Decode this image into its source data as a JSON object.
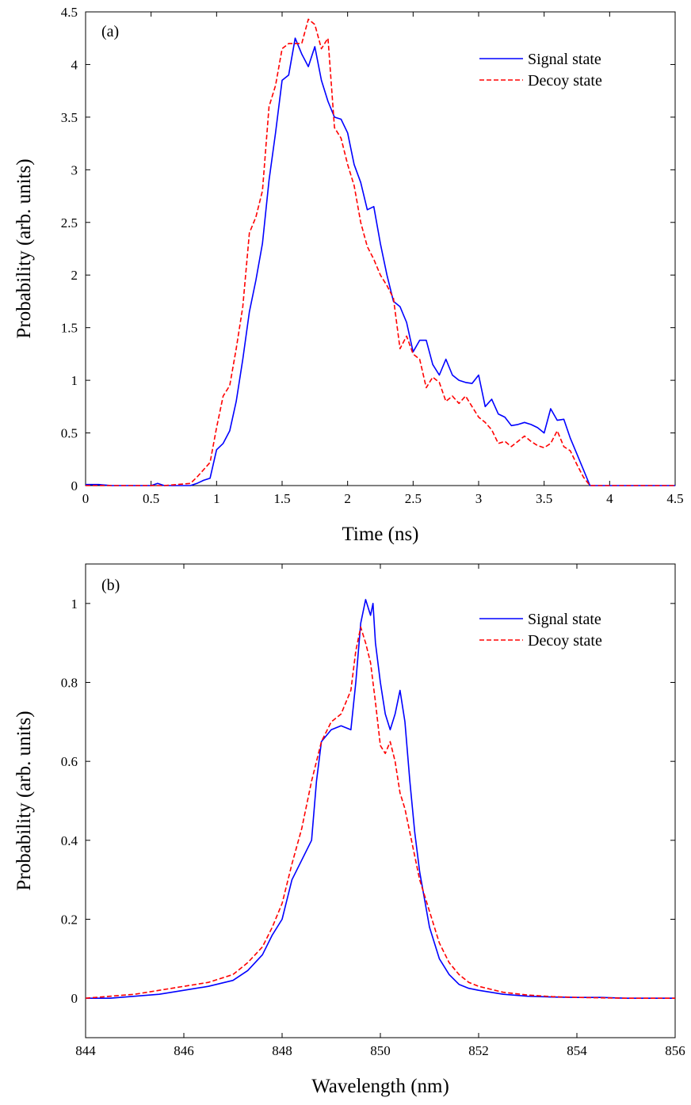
{
  "chart_data": [
    {
      "type": "line",
      "panel_label": "(a)",
      "xlabel": "Time (ns)",
      "ylabel": "Probability (arb. units)",
      "xlim": [
        0,
        4.5
      ],
      "ylim": [
        0,
        4.5
      ],
      "xticks": [
        "0",
        "0.5",
        "1",
        "1.5",
        "2",
        "2.5",
        "3",
        "3.5",
        "4",
        "4.5"
      ],
      "yticks": [
        "0",
        "0.5",
        "1",
        "1.5",
        "2",
        "2.5",
        "3",
        "3.5",
        "4",
        "4.5"
      ],
      "legend_position": "top-right",
      "series": [
        {
          "name": "Signal state",
          "color": "#0000ff",
          "style": "solid",
          "x": [
            0,
            0.1,
            0.2,
            0.3,
            0.4,
            0.5,
            0.55,
            0.6,
            0.7,
            0.8,
            0.85,
            0.9,
            0.95,
            1.0,
            1.05,
            1.1,
            1.15,
            1.2,
            1.25,
            1.3,
            1.35,
            1.4,
            1.45,
            1.5,
            1.55,
            1.6,
            1.65,
            1.7,
            1.75,
            1.8,
            1.85,
            1.9,
            1.95,
            2.0,
            2.05,
            2.1,
            2.15,
            2.2,
            2.25,
            2.3,
            2.35,
            2.4,
            2.45,
            2.5,
            2.55,
            2.6,
            2.65,
            2.7,
            2.75,
            2.8,
            2.85,
            2.9,
            2.95,
            3.0,
            3.05,
            3.1,
            3.15,
            3.2,
            3.25,
            3.3,
            3.35,
            3.4,
            3.45,
            3.5,
            3.55,
            3.6,
            3.65,
            3.7,
            3.75,
            3.8,
            3.85,
            3.9,
            4.0,
            4.2,
            4.5
          ],
          "y": [
            0.01,
            0.01,
            0.0,
            0.0,
            0.0,
            0.0,
            0.02,
            0.0,
            0.0,
            0.0,
            0.02,
            0.05,
            0.07,
            0.34,
            0.4,
            0.52,
            0.8,
            1.2,
            1.65,
            1.95,
            2.3,
            2.9,
            3.35,
            3.85,
            3.9,
            4.25,
            4.1,
            3.98,
            4.17,
            3.85,
            3.65,
            3.5,
            3.48,
            3.35,
            3.05,
            2.88,
            2.62,
            2.65,
            2.3,
            2.0,
            1.75,
            1.7,
            1.55,
            1.27,
            1.38,
            1.38,
            1.15,
            1.05,
            1.2,
            1.05,
            1.0,
            0.98,
            0.97,
            1.05,
            0.75,
            0.82,
            0.68,
            0.65,
            0.57,
            0.58,
            0.6,
            0.58,
            0.55,
            0.5,
            0.73,
            0.62,
            0.63,
            0.45,
            0.3,
            0.15,
            0.0,
            0.0,
            0.0,
            0.0,
            0.0
          ]
        },
        {
          "name": "Decoy state",
          "color": "#ff0000",
          "style": "dashed",
          "x": [
            0,
            0.1,
            0.2,
            0.3,
            0.4,
            0.5,
            0.6,
            0.7,
            0.8,
            0.85,
            0.9,
            0.95,
            1.0,
            1.05,
            1.1,
            1.15,
            1.2,
            1.25,
            1.3,
            1.35,
            1.4,
            1.45,
            1.5,
            1.55,
            1.6,
            1.65,
            1.7,
            1.75,
            1.8,
            1.85,
            1.9,
            1.95,
            2.0,
            2.05,
            2.1,
            2.15,
            2.2,
            2.25,
            2.3,
            2.35,
            2.4,
            2.45,
            2.5,
            2.55,
            2.6,
            2.65,
            2.7,
            2.75,
            2.8,
            2.85,
            2.9,
            2.95,
            3.0,
            3.05,
            3.1,
            3.15,
            3.2,
            3.25,
            3.3,
            3.35,
            3.4,
            3.45,
            3.5,
            3.55,
            3.6,
            3.65,
            3.7,
            3.75,
            3.8,
            3.85,
            4.0,
            4.5
          ],
          "y": [
            0.0,
            0.0,
            0.0,
            0.0,
            0.0,
            0.0,
            0.0,
            0.01,
            0.02,
            0.08,
            0.15,
            0.22,
            0.55,
            0.85,
            0.95,
            1.3,
            1.7,
            2.4,
            2.55,
            2.8,
            3.6,
            3.8,
            4.15,
            4.2,
            4.2,
            4.2,
            4.43,
            4.38,
            4.15,
            4.25,
            3.4,
            3.3,
            3.05,
            2.85,
            2.5,
            2.27,
            2.15,
            2.0,
            1.9,
            1.78,
            1.3,
            1.42,
            1.25,
            1.2,
            0.93,
            1.03,
            0.98,
            0.8,
            0.85,
            0.78,
            0.85,
            0.75,
            0.65,
            0.6,
            0.53,
            0.4,
            0.42,
            0.37,
            0.42,
            0.47,
            0.42,
            0.38,
            0.36,
            0.4,
            0.52,
            0.37,
            0.33,
            0.2,
            0.08,
            0.0,
            0.0,
            0.0
          ]
        }
      ]
    },
    {
      "type": "line",
      "panel_label": "(b)",
      "xlabel": "Wavelength (nm)",
      "ylabel": "Probability (arb. units)",
      "xlim": [
        844,
        856
      ],
      "ylim": [
        -0.1,
        1.1
      ],
      "xticks": [
        "844",
        "846",
        "848",
        "850",
        "852",
        "854",
        "856"
      ],
      "yticks": [
        "0",
        "0.2",
        "0.4",
        "0.6",
        "0.8",
        "1"
      ],
      "legend_position": "top-right",
      "series": [
        {
          "name": "Signal state",
          "color": "#0000ff",
          "style": "solid",
          "x": [
            844.0,
            844.5,
            845.0,
            845.5,
            846.0,
            846.5,
            847.0,
            847.3,
            847.6,
            847.8,
            848.0,
            848.2,
            848.4,
            848.6,
            848.7,
            848.8,
            849.0,
            849.2,
            849.4,
            849.5,
            849.6,
            849.7,
            849.8,
            849.85,
            849.9,
            850.0,
            850.1,
            850.2,
            850.3,
            850.4,
            850.5,
            850.6,
            850.7,
            850.8,
            850.9,
            851.0,
            851.2,
            851.4,
            851.6,
            851.8,
            852.0,
            852.5,
            853.0,
            853.5,
            854.0,
            854.5,
            855.0,
            855.5,
            856.0
          ],
          "y": [
            0.0,
            0.0,
            0.005,
            0.01,
            0.02,
            0.03,
            0.045,
            0.07,
            0.11,
            0.16,
            0.2,
            0.3,
            0.35,
            0.4,
            0.55,
            0.65,
            0.68,
            0.69,
            0.68,
            0.8,
            0.95,
            1.01,
            0.97,
            1.0,
            0.9,
            0.8,
            0.72,
            0.68,
            0.72,
            0.78,
            0.7,
            0.55,
            0.42,
            0.32,
            0.25,
            0.18,
            0.1,
            0.06,
            0.035,
            0.025,
            0.02,
            0.01,
            0.005,
            0.003,
            0.002,
            0.002,
            0.0,
            0.0,
            0.0
          ]
        },
        {
          "name": "Decoy state",
          "color": "#ff0000",
          "style": "dashed",
          "x": [
            844.0,
            844.5,
            845.0,
            845.5,
            846.0,
            846.5,
            847.0,
            847.3,
            847.6,
            847.8,
            848.0,
            848.2,
            848.4,
            848.6,
            848.8,
            849.0,
            849.2,
            849.4,
            849.5,
            849.6,
            849.7,
            849.8,
            849.9,
            850.0,
            850.1,
            850.2,
            850.3,
            850.4,
            850.5,
            850.6,
            850.7,
            850.8,
            850.9,
            851.0,
            851.2,
            851.4,
            851.6,
            851.8,
            852.0,
            852.5,
            853.0,
            853.5,
            854.0,
            854.5,
            855.0,
            855.5,
            856.0
          ],
          "y": [
            0.0,
            0.005,
            0.01,
            0.02,
            0.03,
            0.04,
            0.06,
            0.09,
            0.13,
            0.18,
            0.24,
            0.34,
            0.43,
            0.55,
            0.65,
            0.7,
            0.72,
            0.78,
            0.88,
            0.94,
            0.9,
            0.85,
            0.75,
            0.64,
            0.62,
            0.65,
            0.6,
            0.52,
            0.48,
            0.42,
            0.36,
            0.3,
            0.26,
            0.22,
            0.14,
            0.09,
            0.06,
            0.04,
            0.03,
            0.015,
            0.008,
            0.004,
            0.002,
            0.001,
            0.0,
            0.0,
            0.0
          ]
        }
      ]
    }
  ]
}
